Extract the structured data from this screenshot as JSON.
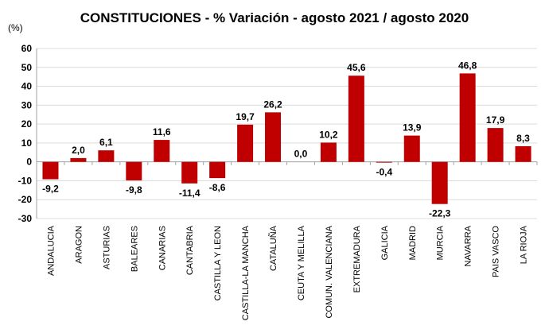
{
  "chart_data": {
    "type": "bar",
    "title": "CONSTITUCIONES - % Variación - agosto 2021 / agosto 2020",
    "ylabel": "(%)",
    "xlabel": "",
    "ylim": [
      -30,
      60
    ],
    "yticks": [
      60,
      50,
      40,
      30,
      20,
      10,
      0,
      -10,
      -20,
      -30
    ],
    "grid": true,
    "legend": "none",
    "bar_color": "#c00000",
    "categories": [
      "ANDALUCIA",
      "ARAGON",
      "ASTURIAS",
      "BALEARES",
      "CANARIAS",
      "CANTABRIA",
      "CASTILLA Y LEON",
      "CASTILLA-LA MANCHA",
      "CATALUÑA",
      "CEUTA Y MELILLA",
      "COMUN. VALENCIANA",
      "EXTREMADURA",
      "GALICIA",
      "MADRID",
      "MURCIA",
      "NAVARRA",
      "PAIS VASCO",
      "LA RIOJA"
    ],
    "values": [
      -9.2,
      2.0,
      6.1,
      -9.8,
      11.6,
      -11.4,
      -8.6,
      19.7,
      26.2,
      0.0,
      10.2,
      45.6,
      -0.4,
      13.9,
      -22.3,
      46.8,
      17.9,
      8.3
    ],
    "data_labels": [
      "-9,2",
      "2,0",
      "6,1",
      "-9,8",
      "11,6",
      "-11,4",
      "-8,6",
      "19,7",
      "26,2",
      "0,0",
      "10,2",
      "45,6",
      "-0,4",
      "13,9",
      "-22,3",
      "46,8",
      "17,9",
      "8,3"
    ]
  }
}
